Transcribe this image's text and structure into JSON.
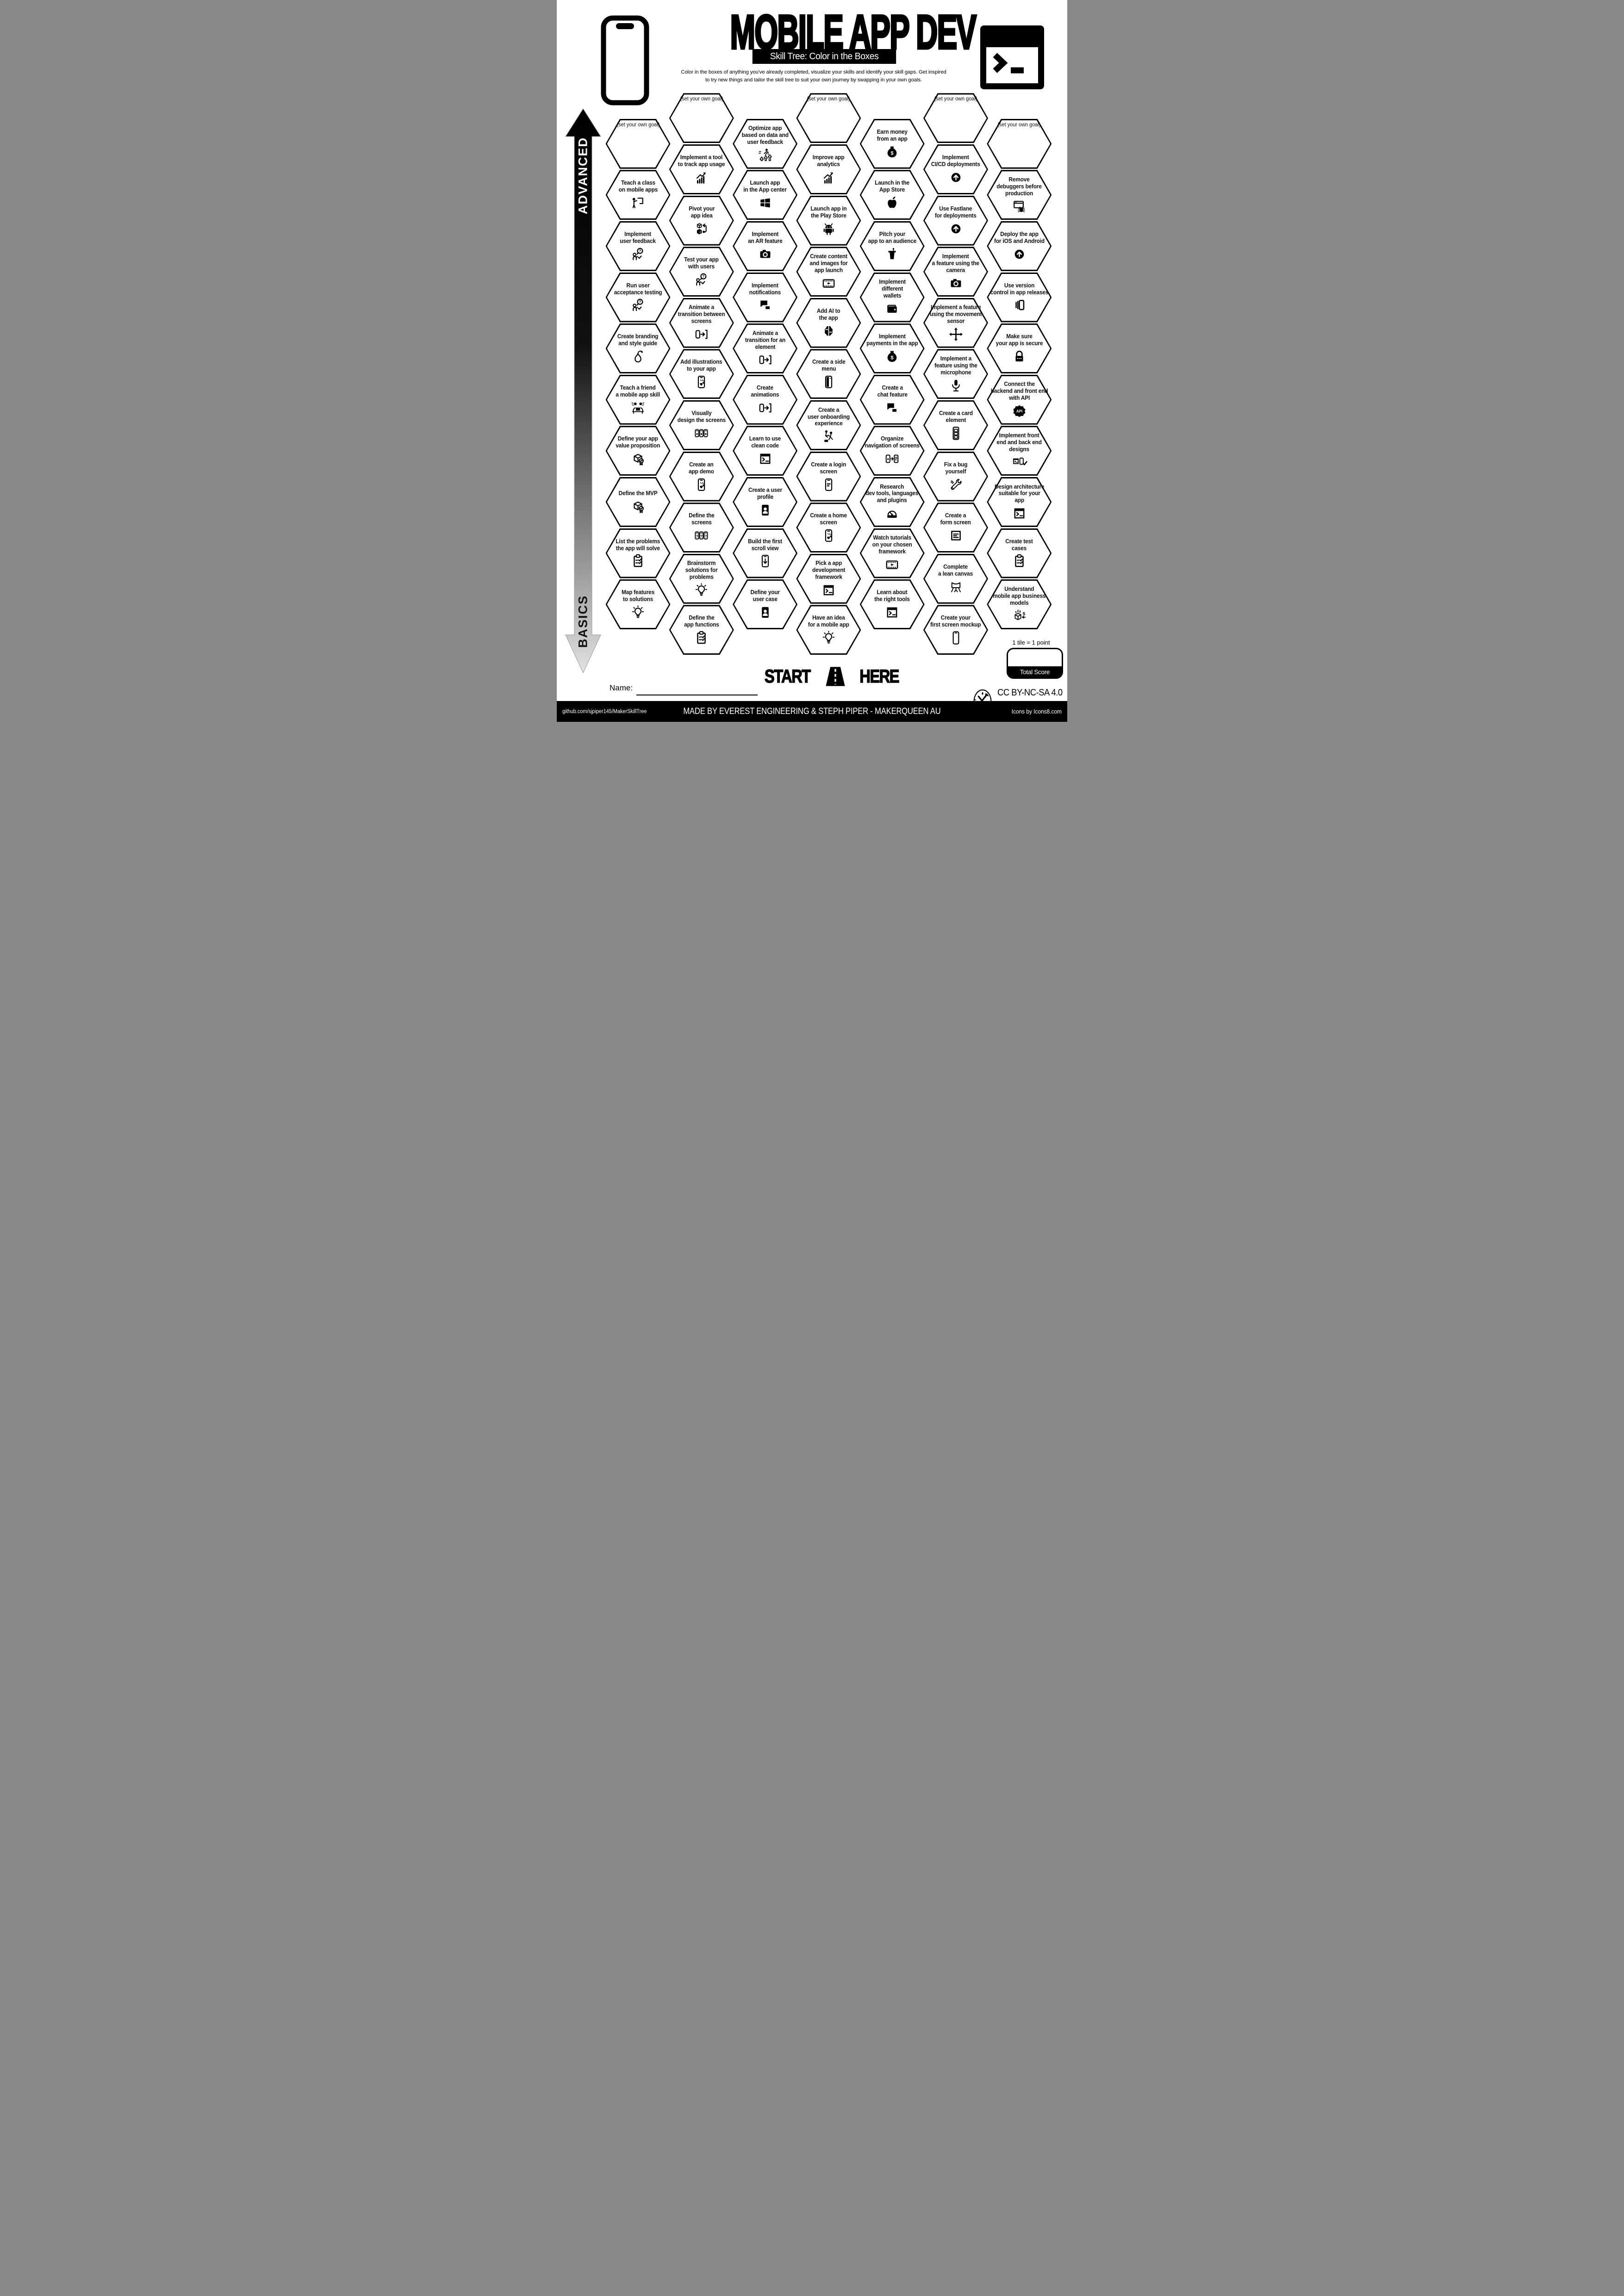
{
  "header": {
    "title": "MOBILE APP DEV",
    "subtitle": "Skill Tree: Color in the Boxes",
    "description": [
      "Color in the boxes of anything you've already completed, visualize your skills and identify your skill gaps.  Get inspired",
      "to try new things and tailor the skill tree to suit your own journey by swapping in your own goals."
    ],
    "left_icon": "smartphone-icon",
    "right_icon": "terminal-window-icon"
  },
  "axis": {
    "top_label": "ADVANCED",
    "bottom_label": "BASICS"
  },
  "grid": {
    "goal_label": "(set your own goal)",
    "columns": [
      {
        "tiles": [
          {
            "label": "(set your own goal)",
            "icon": null,
            "goal": true
          },
          {
            "label": "Teach a class\non mobile apps",
            "icon": "teacher-board-icon"
          },
          {
            "label": "Implement\nuser feedback",
            "icon": "person-feedback-icon"
          },
          {
            "label": "Run user\nacceptance testing",
            "icon": "person-feedback-icon"
          },
          {
            "label": "Create branding\nand style guide",
            "icon": "pear-icon"
          },
          {
            "label": "Teach a friend\na mobile app skill",
            "icon": "friends-laptop-icon"
          },
          {
            "label": "Define your app\nvalue proposition",
            "icon": "cube-badge-icon"
          },
          {
            "label": "Define the MVP",
            "icon": "cube-badge-icon"
          },
          {
            "label": "List the problems\nthe app will solve",
            "icon": "clipboard-check-icon"
          },
          {
            "label": "Map features\nto solutions",
            "icon": "lightbulb-icon"
          }
        ]
      },
      {
        "tiles": [
          {
            "label": "(set your own goal)",
            "icon": null,
            "goal": true
          },
          {
            "label": "Implement a tool\nto track app usage",
            "icon": "growth-chart-icon"
          },
          {
            "label": "Pivot your\napp idea",
            "icon": "pivot-cubes-icon"
          },
          {
            "label": "Test your app\nwith users",
            "icon": "person-feedback-icon"
          },
          {
            "label": "Animate a\ntransition between\nscreens",
            "icon": "phone-transition-icon"
          },
          {
            "label": "Add illustrations\nto your app",
            "icon": "phone-illustration-icon"
          },
          {
            "label": "Visually\ndesign the screens",
            "icon": "phones-design-icon"
          },
          {
            "label": "Create an\napp demo",
            "icon": "phone-illustration-icon"
          },
          {
            "label": "Define the\nscreens",
            "icon": "screens-question-icon"
          },
          {
            "label": "Brainstorm\nsolutions for\nproblems",
            "icon": "lightbulb-icon"
          },
          {
            "label": "Define the\napp functions",
            "icon": "clipboard-check-icon"
          }
        ]
      },
      {
        "tiles": [
          {
            "label": "Optimize app\nbased on data and\nuser feedback",
            "icon": "sprint-growth-icon"
          },
          {
            "label": "Launch app\nin the App center",
            "icon": "windows-icon"
          },
          {
            "label": "Implement\nan AR feature",
            "icon": "camera-icon"
          },
          {
            "label": "Implement\nnotifications",
            "icon": "chat-bubbles-icon"
          },
          {
            "label": "Animate a\ntransition for an\nelement",
            "icon": "phone-transition-icon"
          },
          {
            "label": "Create\nanimations",
            "icon": "phone-transition-icon"
          },
          {
            "label": "Learn to use\nclean code",
            "icon": "terminal-icon"
          },
          {
            "label": "Create a user\nprofile",
            "icon": "user-card-icon"
          },
          {
            "label": "Build the first\nscroll view",
            "icon": "phone-scroll-icon"
          },
          {
            "label": "Define your\nuser case",
            "icon": "user-card-icon"
          }
        ]
      },
      {
        "tiles": [
          {
            "label": "(set your own goal)",
            "icon": null,
            "goal": true
          },
          {
            "label": "Improve app\nanalytics",
            "icon": "growth-chart-icon"
          },
          {
            "label": "Launch app in\nthe Play Store",
            "icon": "android-icon"
          },
          {
            "label": "Create content\nand images for\napp launch",
            "icon": "video-frame-icon"
          },
          {
            "label": "Add AI to\nthe app",
            "icon": "brain-icon"
          },
          {
            "label": "Create a side\nmenu",
            "icon": "phone-menu-icon"
          },
          {
            "label": "Create a\nuser onboarding\nexperience",
            "icon": "onboarding-icon"
          },
          {
            "label": "Create a login\nscreen",
            "icon": "phone-login-icon"
          },
          {
            "label": "Create a home\nscreen",
            "icon": "phone-illustration-icon"
          },
          {
            "label": "Pick a app\ndevelopment\nframework",
            "icon": "terminal-icon"
          },
          {
            "label": "Have an idea\nfor a mobile app",
            "icon": "lightbulb-icon"
          }
        ]
      },
      {
        "tiles": [
          {
            "label": "Earn money\nfrom an app",
            "icon": "money-bag-icon"
          },
          {
            "label": "Launch in the\nApp Store",
            "icon": "apple-icon"
          },
          {
            "label": "Pitch your\napp to an audience",
            "icon": "podium-icon"
          },
          {
            "label": "Implement\ndifferent\nwallets",
            "icon": "wallet-icon"
          },
          {
            "label": "Implement\npayments in the app",
            "icon": "money-bag-icon"
          },
          {
            "label": "Create a\nchat feature",
            "icon": "chat-bubbles-icon"
          },
          {
            "label": "Organize\nnavigation of screens",
            "icon": "nav-screens-icon"
          },
          {
            "label": "Research\ndev tools, languages\nand plugins",
            "icon": "gauge-icon"
          },
          {
            "label": "Watch tutorials\non your chosen\nframework",
            "icon": "video-frame-icon"
          },
          {
            "label": "Learn about\nthe right tools",
            "icon": "terminal-icon"
          }
        ]
      },
      {
        "tiles": [
          {
            "label": "(set your own goal)",
            "icon": null,
            "goal": true
          },
          {
            "label": "Implement\nCI/CD deployments",
            "icon": "up-circle-icon"
          },
          {
            "label": "Use Fastlane\nfor deployments",
            "icon": "up-circle-icon"
          },
          {
            "label": "Implement\na feature using the\ncamera",
            "icon": "camera-icon"
          },
          {
            "label": "Implement a feature\nusing the movement\nsensor",
            "icon": "move-arrows-icon"
          },
          {
            "label": "Implement a\nfeature using the\nmicrophone",
            "icon": "mic-icon"
          },
          {
            "label": "Create a card\nelement",
            "icon": "card-list-icon"
          },
          {
            "label": "Fix a bug\nyourself",
            "icon": "tools-icon"
          },
          {
            "label": "Create a\nform screen",
            "icon": "form-icon"
          },
          {
            "label": "Complete\na lean canvas",
            "icon": "easel-icon"
          },
          {
            "label": "Create your\nfirst screen mockup",
            "icon": "phone-outline-icon"
          }
        ]
      },
      {
        "tiles": [
          {
            "label": "(set your own goal)",
            "icon": null,
            "goal": true
          },
          {
            "label": "Remove\ndebuggers before\nproduction",
            "icon": "bug-window-icon"
          },
          {
            "label": "Deploy the app\nfor iOS and Android",
            "icon": "up-circle-icon"
          },
          {
            "label": "Use version\ncontrol in app releases",
            "icon": "layers-phone-icon"
          },
          {
            "label": "Make sure\nyour app is secure",
            "icon": "lock-icon"
          },
          {
            "label": "Connect the\nbackend and front end\nwith API",
            "icon": "api-icon"
          },
          {
            "label": "Implement front\nend and back end\ndesigns",
            "icon": "devices-check-icon"
          },
          {
            "label": "Design architecture\nsuitable for your\napp",
            "icon": "terminal-icon"
          },
          {
            "label": "Create test\ncases",
            "icon": "clipboard-check-icon"
          },
          {
            "label": "Understand\nmobile app business\nmodels",
            "icon": "business-cube-icon"
          }
        ]
      }
    ]
  },
  "start_here": {
    "left": "START",
    "right": "HERE",
    "icon": "road-icon"
  },
  "name_field": {
    "label": "Name:"
  },
  "scoring": {
    "note": "1 tile = 1 point",
    "box_label": "Total Score"
  },
  "license": {
    "text": "CC BY-NC-SA 4.0",
    "icon": "maker-tools-logo"
  },
  "footer": {
    "left": "github.com/sjpiper145/MakerSkillTree",
    "center": "MADE BY EVEREST ENGINEERING & STEPH PIPER  -  MAKERQUEEN AU",
    "right": "Icons by Icons8.com"
  },
  "colors": {
    "ink": "#000000",
    "paper": "#ffffff",
    "arrow_fade_end": "#e2e2e2"
  }
}
